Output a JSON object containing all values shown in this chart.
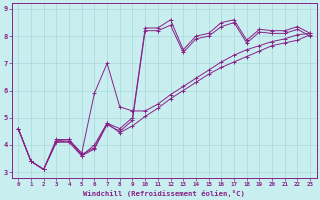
{
  "xlabel": "Windchill (Refroidissement éolien,°C)",
  "background_color": "#c8eef0",
  "line_color": "#882288",
  "grid_color": "#a8d8d8",
  "xlim": [
    -0.5,
    23.5
  ],
  "ylim": [
    2.8,
    9.2
  ],
  "xticks": [
    0,
    1,
    2,
    3,
    4,
    5,
    6,
    7,
    8,
    9,
    10,
    11,
    12,
    13,
    14,
    15,
    16,
    17,
    18,
    19,
    20,
    21,
    22,
    23
  ],
  "yticks": [
    3,
    4,
    5,
    6,
    7,
    8,
    9
  ],
  "series": [
    [
      4.6,
      3.4,
      3.1,
      4.2,
      4.2,
      3.6,
      4.0,
      4.8,
      4.6,
      5.0,
      8.3,
      8.3,
      8.6,
      7.5,
      8.0,
      8.1,
      8.5,
      8.6,
      7.85,
      8.25,
      8.2,
      8.2,
      8.35,
      8.1
    ],
    [
      4.6,
      3.4,
      3.1,
      4.1,
      4.1,
      3.6,
      3.85,
      4.75,
      4.5,
      4.9,
      8.2,
      8.2,
      8.4,
      7.4,
      7.9,
      8.0,
      8.35,
      8.5,
      7.75,
      8.15,
      8.1,
      8.1,
      8.25,
      8.0
    ],
    [
      4.6,
      3.4,
      3.1,
      4.15,
      4.2,
      3.7,
      5.9,
      7.0,
      5.4,
      5.25,
      5.25,
      5.5,
      5.85,
      6.15,
      6.45,
      6.75,
      7.05,
      7.3,
      7.5,
      7.65,
      7.8,
      7.9,
      8.05,
      8.1
    ],
    [
      4.6,
      3.4,
      3.1,
      4.1,
      4.15,
      3.65,
      3.9,
      4.8,
      4.45,
      4.7,
      5.05,
      5.35,
      5.7,
      6.0,
      6.3,
      6.6,
      6.85,
      7.05,
      7.25,
      7.45,
      7.65,
      7.75,
      7.85,
      8.05
    ]
  ]
}
